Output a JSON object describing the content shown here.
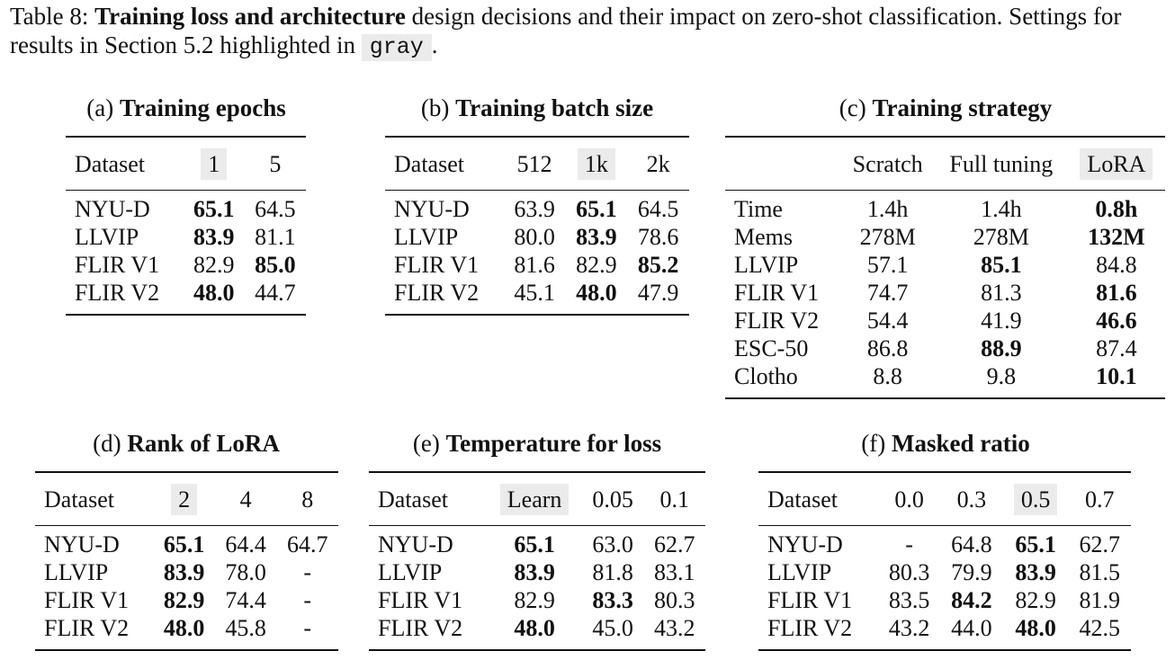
{
  "caption": {
    "label": "Table 8:",
    "bold": "Training loss and architecture",
    "text": "design decisions and their impact on zero-shot classification. Settings for results in Section 5.2 highlighted in",
    "highlight_word": "gray",
    "end": "."
  },
  "tables": {
    "a": {
      "letter": "(a)",
      "title": "Training epochs",
      "columns": [
        "Dataset",
        "1",
        "5"
      ],
      "highlight_col": 1,
      "rows": [
        {
          "cells": [
            "NYU-D",
            "65.1",
            "64.5"
          ],
          "bold": [
            1
          ]
        },
        {
          "cells": [
            "LLVIP",
            "83.9",
            "81.1"
          ],
          "bold": [
            1
          ]
        },
        {
          "cells": [
            "FLIR V1",
            "82.9",
            "85.0"
          ],
          "bold": [
            2
          ]
        },
        {
          "cells": [
            "FLIR V2",
            "48.0",
            "44.7"
          ],
          "bold": [
            1
          ]
        }
      ]
    },
    "b": {
      "letter": "(b)",
      "title": "Training batch size",
      "columns": [
        "Dataset",
        "512",
        "1k",
        "2k"
      ],
      "highlight_col": 2,
      "rows": [
        {
          "cells": [
            "NYU-D",
            "63.9",
            "65.1",
            "64.5"
          ],
          "bold": [
            2
          ]
        },
        {
          "cells": [
            "LLVIP",
            "80.0",
            "83.9",
            "78.6"
          ],
          "bold": [
            2
          ]
        },
        {
          "cells": [
            "FLIR V1",
            "81.6",
            "82.9",
            "85.2"
          ],
          "bold": [
            3
          ]
        },
        {
          "cells": [
            "FLIR V2",
            "45.1",
            "48.0",
            "47.9"
          ],
          "bold": [
            2
          ]
        }
      ]
    },
    "c": {
      "letter": "(c)",
      "title": "Training strategy",
      "columns": [
        "",
        "Scratch",
        "Full tuning",
        "LoRA"
      ],
      "highlight_col": 3,
      "rows": [
        {
          "cells": [
            "Time",
            "1.4h",
            "1.4h",
            "0.8h"
          ],
          "bold": [
            3
          ]
        },
        {
          "cells": [
            "Mems",
            "278M",
            "278M",
            "132M"
          ],
          "bold": [
            3
          ]
        },
        {
          "cells": [
            "LLVIP",
            "57.1",
            "85.1",
            "84.8"
          ],
          "bold": [
            2
          ]
        },
        {
          "cells": [
            "FLIR V1",
            "74.7",
            "81.3",
            "81.6"
          ],
          "bold": [
            3
          ]
        },
        {
          "cells": [
            "FLIR V2",
            "54.4",
            "41.9",
            "46.6"
          ],
          "bold": [
            3
          ]
        },
        {
          "cells": [
            "ESC-50",
            "86.8",
            "88.9",
            "87.4"
          ],
          "bold": [
            2
          ]
        },
        {
          "cells": [
            "Clotho",
            "8.8",
            "9.8",
            "10.1"
          ],
          "bold": [
            3
          ]
        }
      ]
    },
    "d": {
      "letter": "(d)",
      "title": "Rank of LoRA",
      "columns": [
        "Dataset",
        "2",
        "4",
        "8"
      ],
      "highlight_col": 1,
      "rows": [
        {
          "cells": [
            "NYU-D",
            "65.1",
            "64.4",
            "64.7"
          ],
          "bold": [
            1
          ]
        },
        {
          "cells": [
            "LLVIP",
            "83.9",
            "78.0",
            "-"
          ],
          "bold": [
            1
          ]
        },
        {
          "cells": [
            "FLIR V1",
            "82.9",
            "74.4",
            "-"
          ],
          "bold": [
            1
          ]
        },
        {
          "cells": [
            "FLIR V2",
            "48.0",
            "45.8",
            "-"
          ],
          "bold": [
            1
          ]
        }
      ]
    },
    "e": {
      "letter": "(e)",
      "title": "Temperature for loss",
      "columns": [
        "Dataset",
        "Learn",
        "0.05",
        "0.1"
      ],
      "highlight_col": 1,
      "rows": [
        {
          "cells": [
            "NYU-D",
            "65.1",
            "63.0",
            "62.7"
          ],
          "bold": [
            1
          ]
        },
        {
          "cells": [
            "LLVIP",
            "83.9",
            "81.8",
            "83.1"
          ],
          "bold": [
            1
          ]
        },
        {
          "cells": [
            "FLIR V1",
            "82.9",
            "83.3",
            "80.3"
          ],
          "bold": [
            2
          ]
        },
        {
          "cells": [
            "FLIR V2",
            "48.0",
            "45.0",
            "43.2"
          ],
          "bold": [
            1
          ]
        }
      ]
    },
    "f": {
      "letter": "(f)",
      "title": "Masked ratio",
      "columns": [
        "Dataset",
        "0.0",
        "0.3",
        "0.5",
        "0.7"
      ],
      "highlight_col": 3,
      "rows": [
        {
          "cells": [
            "NYU-D",
            "-",
            "64.8",
            "65.1",
            "62.7"
          ],
          "bold": [
            3
          ]
        },
        {
          "cells": [
            "LLVIP",
            "80.3",
            "79.9",
            "83.9",
            "81.5"
          ],
          "bold": [
            3
          ]
        },
        {
          "cells": [
            "FLIR V1",
            "83.5",
            "84.2",
            "82.9",
            "81.9"
          ],
          "bold": [
            2
          ]
        },
        {
          "cells": [
            "FLIR V2",
            "43.2",
            "44.0",
            "48.0",
            "42.5"
          ],
          "bold": [
            3
          ]
        }
      ]
    }
  }
}
